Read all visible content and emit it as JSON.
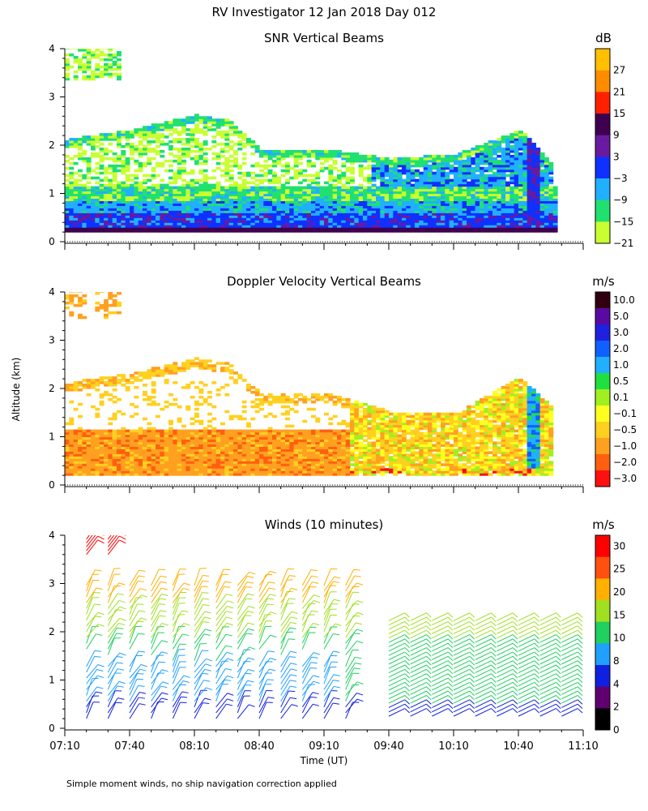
{
  "page": {
    "title": "RV Investigator  12 Jan 2018 Day 012",
    "ylabel": "Altitude (km)",
    "xlabel": "Time (UT)",
    "footnote": "Simple moment winds, no ship navigation correction applied"
  },
  "chart_data": [
    {
      "type": "heatmap",
      "title": "SNR Vertical Beams",
      "units": "dB",
      "xlim": [
        "07:10",
        "11:10"
      ],
      "ylim": [
        0,
        4
      ],
      "x_ticks": [
        "07:10",
        "07:40",
        "08:10",
        "08:40",
        "09:10",
        "09:40",
        "10:10",
        "10:40",
        "11:10"
      ],
      "y_ticks": [
        0,
        1,
        2,
        3,
        4
      ],
      "colorbar_labels": [
        "27",
        "21",
        "15",
        "9",
        "3",
        "−3",
        "−9",
        "−15",
        "−21"
      ],
      "colorbar_colors": [
        "#ffc000",
        "#ff8c00",
        "#ff2000",
        "#400050",
        "#6a1aa0",
        "#1030ff",
        "#20b0ff",
        "#20e070",
        "#c8ff30"
      ],
      "cloud_top_km": [
        {
          "time": "07:10",
          "top": 2.1
        },
        {
          "time": "07:40",
          "top": 2.3
        },
        {
          "time": "08:10",
          "top": 2.6
        },
        {
          "time": "08:25",
          "top": 2.5
        },
        {
          "time": "08:40",
          "top": 1.9
        },
        {
          "time": "09:10",
          "top": 1.9
        },
        {
          "time": "09:40",
          "top": 1.7
        },
        {
          "time": "10:10",
          "top": 1.8
        },
        {
          "time": "10:40",
          "top": 2.3
        },
        {
          "time": "10:55",
          "top": 1.6
        }
      ]
    },
    {
      "type": "heatmap",
      "title": "Doppler Velocity Vertical Beams",
      "units": "m/s",
      "xlim": [
        "07:10",
        "11:10"
      ],
      "ylim": [
        0,
        4
      ],
      "x_ticks": [
        "07:10",
        "07:40",
        "08:10",
        "08:40",
        "09:10",
        "09:40",
        "10:10",
        "10:40",
        "11:10"
      ],
      "y_ticks": [
        0,
        1,
        2,
        3,
        4
      ],
      "colorbar_labels": [
        "10.0",
        "5.0",
        "3.0",
        "2.0",
        "1.0",
        "0.5",
        "0.1",
        "−0.1",
        "−0.5",
        "−1.0",
        "−2.0",
        "−3.0"
      ],
      "colorbar_colors": [
        "#300010",
        "#5a0aa0",
        "#2020e0",
        "#1060ff",
        "#20b0ff",
        "#20e040",
        "#a0f020",
        "#ffff20",
        "#ffd020",
        "#ffa020",
        "#ff6010",
        "#ff1010"
      ]
    },
    {
      "type": "wind_barbs",
      "title": "Winds (10 minutes)",
      "units": "m/s",
      "xlim": [
        "07:10",
        "11:10"
      ],
      "ylim": [
        0,
        4
      ],
      "x_ticks": [
        "07:10",
        "07:40",
        "08:10",
        "08:40",
        "09:10",
        "09:40",
        "10:10",
        "10:40",
        "11:10"
      ],
      "y_ticks": [
        0,
        1,
        2,
        3,
        4
      ],
      "colorbar_labels": [
        "30",
        "25",
        "20",
        "15",
        "10",
        "8",
        "4",
        "2",
        "0"
      ],
      "colorbar_colors": [
        "#ff0000",
        "#ff5010",
        "#ffb000",
        "#a0e020",
        "#20d060",
        "#20a0ff",
        "#1020e0",
        "#600070",
        "#000000"
      ],
      "profile_times": [
        "07:20",
        "07:30",
        "07:40",
        "07:50",
        "08:00",
        "08:10",
        "08:20",
        "08:30",
        "08:40",
        "08:50",
        "09:00",
        "09:10",
        "09:20",
        "09:40",
        "09:50",
        "10:00",
        "10:10",
        "10:20",
        "10:30",
        "10:40",
        "10:50",
        "11:00"
      ]
    }
  ]
}
